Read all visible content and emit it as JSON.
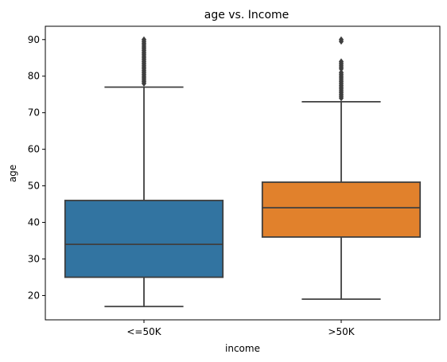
{
  "chart_data": {
    "type": "box",
    "title": "age vs. Income",
    "xlabel": "income",
    "ylabel": "age",
    "ylim": [
      13.35,
      93.65
    ],
    "yticks": [
      20,
      30,
      40,
      50,
      60,
      70,
      80,
      90
    ],
    "grid": false,
    "categories": [
      "<=50K",
      ">50K"
    ],
    "boxes": [
      {
        "category": "<=50K",
        "color": "#3274a1",
        "whisker_low": 17,
        "q1": 25,
        "median": 34,
        "q3": 46,
        "whisker_high": 77,
        "outliers": [
          78,
          78.5,
          79,
          79.5,
          80,
          80.5,
          81,
          81.5,
          82,
          82.5,
          83,
          83.5,
          84,
          84.5,
          85,
          85.5,
          86,
          86.5,
          87,
          87.5,
          88,
          88.5,
          89,
          89.5,
          90
        ]
      },
      {
        "category": ">50K",
        "color": "#e1812c",
        "whisker_low": 19,
        "q1": 36,
        "median": 44,
        "q3": 51,
        "whisker_high": 73,
        "outliers": [
          74,
          74.5,
          75,
          75.5,
          76,
          76.5,
          77,
          77.5,
          78,
          78.5,
          79,
          79.5,
          80,
          80.5,
          81,
          82,
          82.5,
          83,
          83.5,
          84,
          89.5,
          90
        ]
      }
    ]
  }
}
